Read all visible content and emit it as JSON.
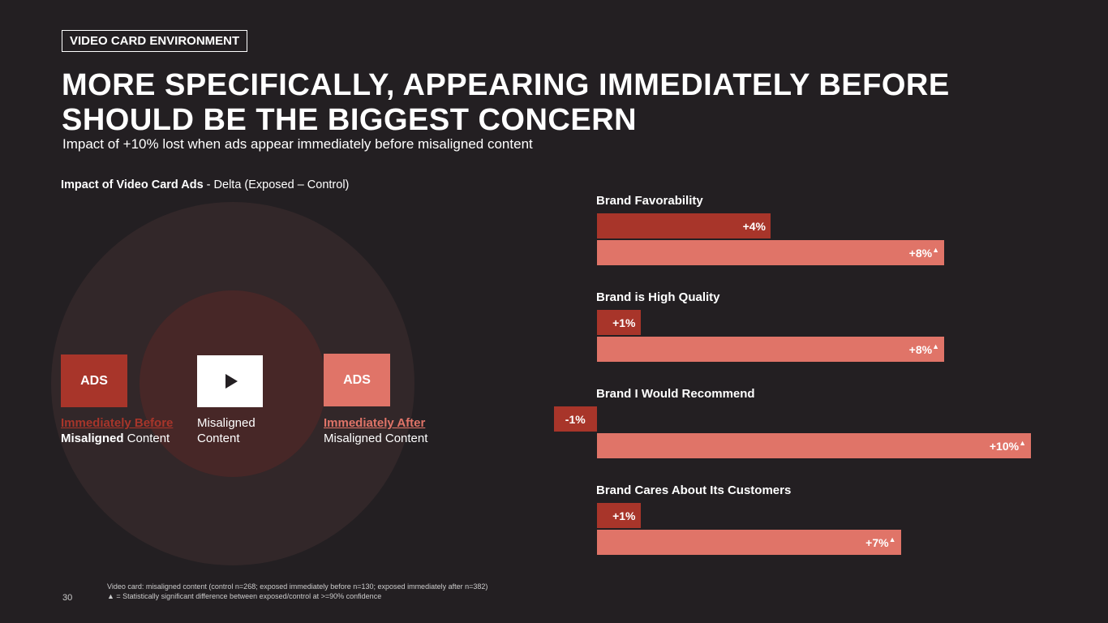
{
  "header": {
    "tag": "VIDEO CARD ENVIRONMENT",
    "title_line1": "MORE SPECIFICALLY, APPEARING IMMEDIATELY BEFORE",
    "title_line2": "SHOULD BE THE BIGGEST CONCERN",
    "subtitle": "Impact of +10% lost when ads appear immediately before misaligned content"
  },
  "diagram": {
    "title_bold": "Impact of Video Card Ads",
    "title_rest": " - Delta (Exposed – Control)",
    "before": {
      "box": "ADS",
      "line1": "Immediately Before",
      "line2_bold": "Misaligned",
      "line2_rest": " Content"
    },
    "content": {
      "line1": "Misaligned",
      "line2": "Content"
    },
    "after": {
      "box": "ADS",
      "line1": "Immediately After",
      "line2": "Misaligned Content"
    }
  },
  "colors": {
    "before": "#a8352a",
    "after": "#e07468",
    "background": "#231f22"
  },
  "chart_data": {
    "type": "bar",
    "orientation": "horizontal",
    "unit": "%",
    "categories": [
      "Brand Favorability",
      "Brand is High Quality",
      "Brand I Would Recommend",
      "Brand Cares About Its Customers"
    ],
    "series": [
      {
        "name": "Immediately Before",
        "values": [
          4,
          1,
          -1,
          1
        ],
        "labels": [
          "+4%",
          "+1%",
          "-1%",
          "+1%"
        ],
        "significant": [
          false,
          false,
          false,
          false
        ]
      },
      {
        "name": "Immediately After",
        "values": [
          8,
          8,
          10,
          7
        ],
        "labels": [
          "+8%",
          "+8%",
          "+10%",
          "+7%"
        ],
        "significant": [
          true,
          true,
          true,
          true
        ]
      }
    ]
  },
  "footer": {
    "page": "30",
    "note1": "Video card: misaligned content (control n=268; exposed immediately before n=130; exposed immediately after n=382)",
    "note2": "▲ = Statistically significant difference between exposed/control at >=90% confidence"
  }
}
